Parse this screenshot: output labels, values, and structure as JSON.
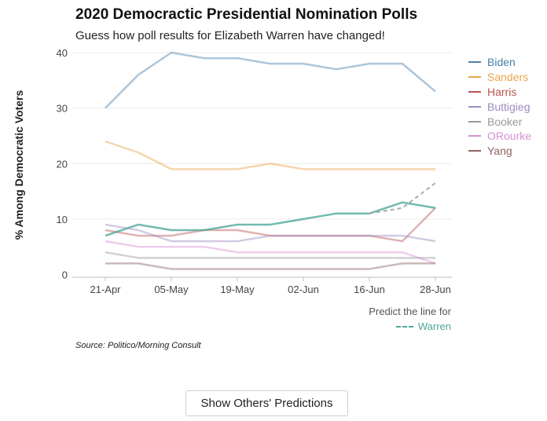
{
  "chart_data": {
    "type": "line",
    "title": "2020 Democractic Presidential Nomination Polls",
    "subtitle": "Guess how poll results for Elizabeth Warren have changed!",
    "xlabel": "",
    "ylabel": "% Among Democratic Voters",
    "ylim": [
      0,
      40
    ],
    "yticks": [
      0,
      10,
      20,
      30,
      40
    ],
    "x": [
      "21-Apr",
      "28-Apr",
      "05-May",
      "12-May",
      "19-May",
      "26-May",
      "02-Jun",
      "09-Jun",
      "16-Jun",
      "23-Jun",
      "28-Jun"
    ],
    "xtick_labels": [
      "21-Apr",
      "05-May",
      "19-May",
      "02-Jun",
      "16-Jun",
      "28-Jun"
    ],
    "grid": "horizontal",
    "legend_position": "right",
    "series": [
      {
        "name": "Biden",
        "color": "#4a7fa8",
        "values": [
          30,
          36,
          40,
          39,
          39,
          38,
          38,
          37,
          38,
          38,
          33
        ]
      },
      {
        "name": "Sanders",
        "color": "#e8a44a",
        "values": [
          24,
          22,
          19,
          19,
          19,
          20,
          19,
          19,
          19,
          19,
          19
        ]
      },
      {
        "name": "Harris",
        "color": "#b85450",
        "values": [
          8,
          7,
          7,
          8,
          8,
          7,
          7,
          7,
          7,
          6,
          12
        ]
      },
      {
        "name": "Buttigieg",
        "color": "#9c8cbf",
        "values": [
          9,
          8,
          6,
          6,
          6,
          7,
          7,
          7,
          7,
          7,
          6
        ]
      },
      {
        "name": "Booker",
        "color": "#999999",
        "values": [
          4,
          3,
          3,
          3,
          3,
          3,
          3,
          3,
          3,
          3,
          3
        ]
      },
      {
        "name": "ORourke",
        "color": "#d98fd6",
        "values": [
          6,
          5,
          5,
          5,
          4,
          4,
          4,
          4,
          4,
          4,
          2
        ]
      },
      {
        "name": "Yang",
        "color": "#8c6464",
        "values": [
          2,
          2,
          1,
          1,
          1,
          1,
          1,
          1,
          1,
          2,
          2
        ]
      }
    ],
    "warren": {
      "name": "Warren",
      "color": "#4fa89a",
      "values": [
        7,
        9,
        8,
        8,
        9,
        9,
        10,
        11,
        11,
        13,
        12
      ],
      "prediction_x": [
        "16-Jun",
        "23-Jun",
        "28-Jun"
      ],
      "prediction_values": [
        11,
        12,
        16.5
      ]
    }
  },
  "predict_label": "Predict the line for",
  "predict_name": "Warren",
  "source": "Source: Politico/Morning Consult",
  "button_label": "Show Others' Predictions"
}
